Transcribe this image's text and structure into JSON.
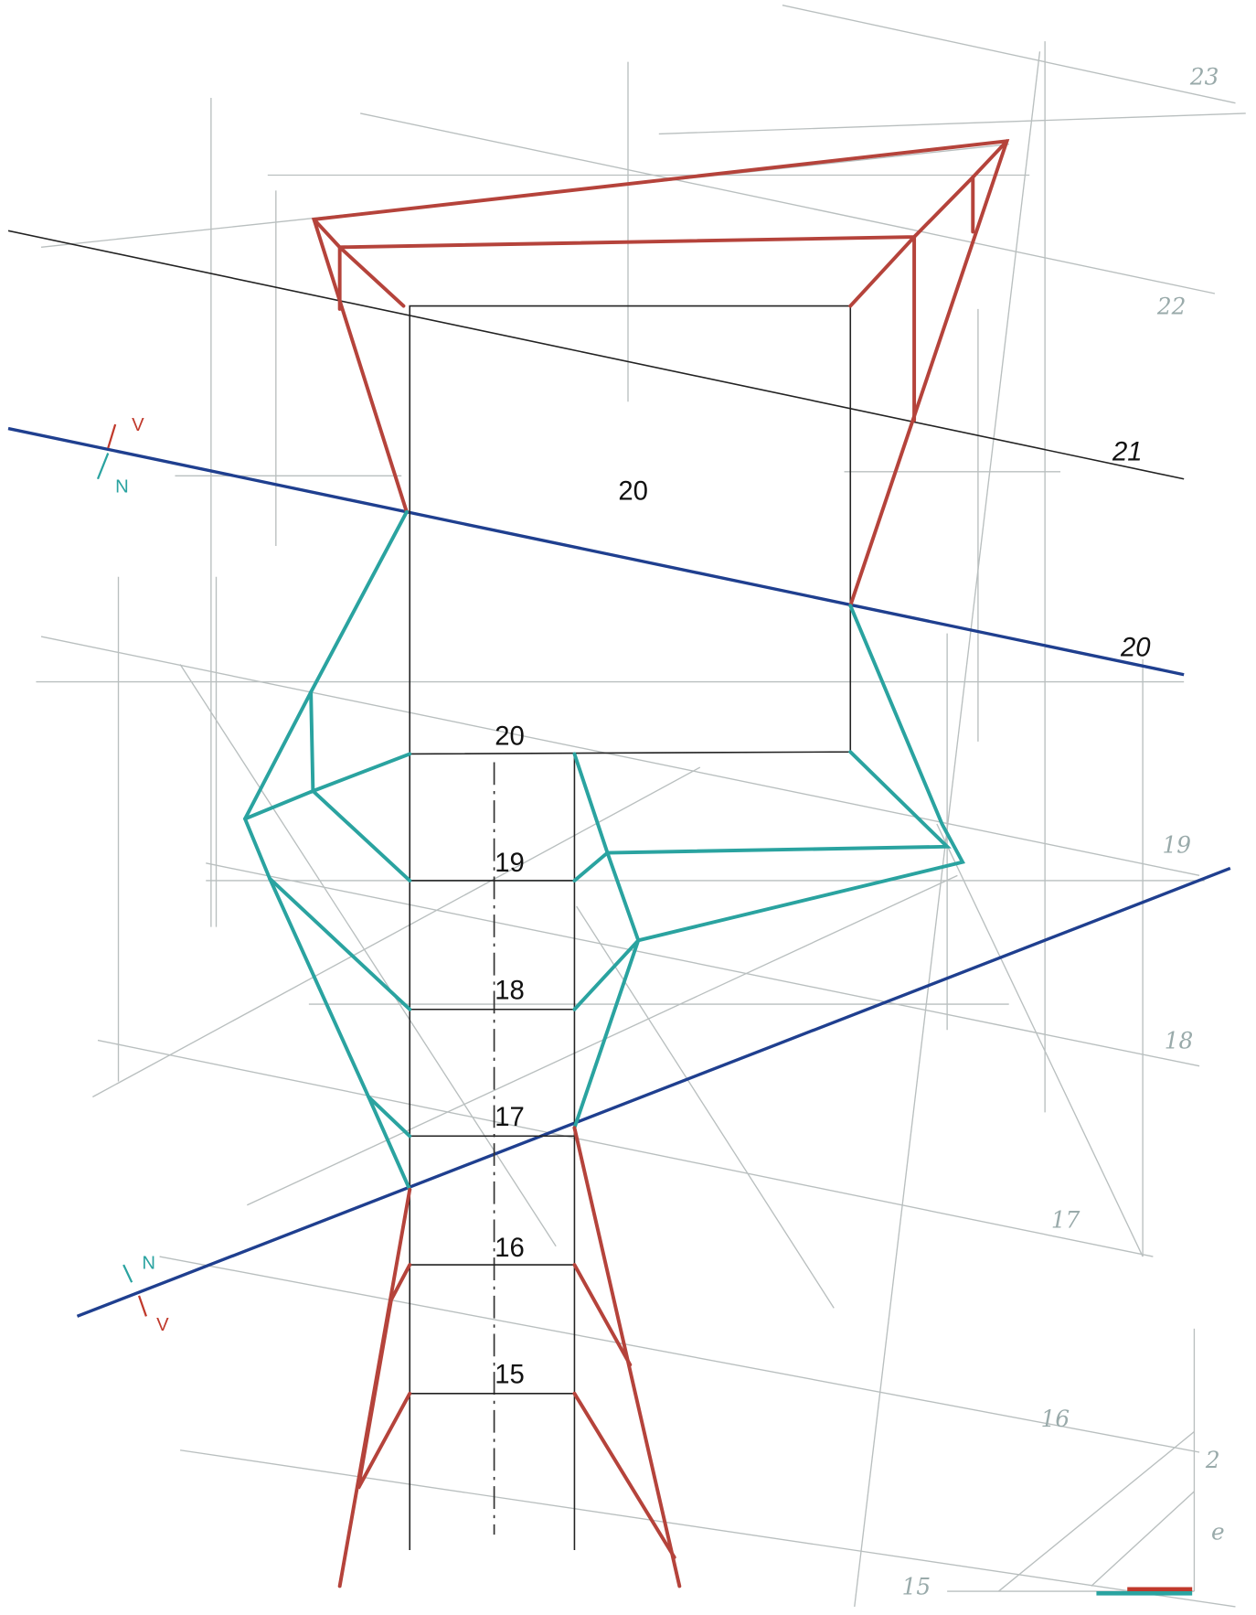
{
  "drawing": {
    "face_label": "20",
    "plane_labels": [
      "21",
      "20"
    ],
    "levels": [
      "20",
      "19",
      "18",
      "17",
      "16",
      "15"
    ],
    "margin_levels": [
      "23",
      "22",
      "19",
      "18",
      "17",
      "16",
      "15"
    ],
    "upper_arrows": [
      "V",
      "N"
    ],
    "lower_arrows": [
      "N",
      "V"
    ],
    "corner_labels": [
      "2",
      "e"
    ]
  }
}
